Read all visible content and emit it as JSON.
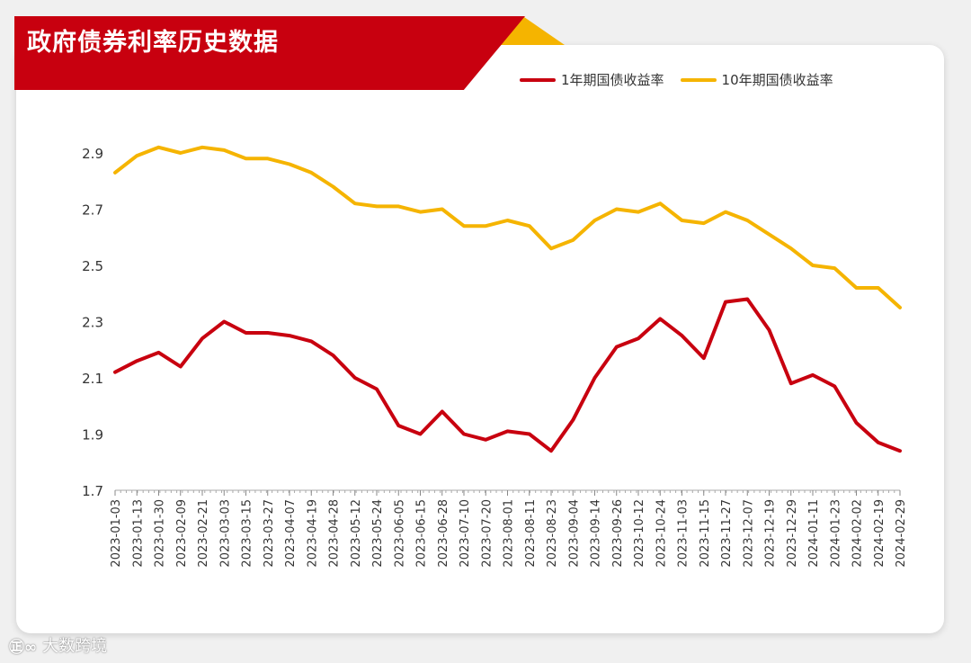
{
  "title": "政府债券利率历史数据",
  "watermark": {
    "logo": "㊣∞",
    "text": "大数跨境"
  },
  "legend": [
    {
      "name": "1年期国债收益率",
      "color": "#c8000f"
    },
    {
      "name": "10年期国债收益率",
      "color": "#f5b400"
    }
  ],
  "chart_data": {
    "type": "line",
    "ylim": [
      1.7,
      2.9
    ],
    "yticks": [
      "2.9",
      "2.7",
      "2.5",
      "2.3",
      "2.1",
      "1.9",
      "1.7"
    ],
    "x": [
      "2023-01-03",
      "2023-01-13",
      "2023-01-30",
      "2023-02-09",
      "2023-02-21",
      "2023-03-03",
      "2023-03-15",
      "2023-03-27",
      "2023-04-07",
      "2023-04-19",
      "2023-04-28",
      "2023-05-12",
      "2023-05-24",
      "2023-06-05",
      "2023-06-15",
      "2023-06-28",
      "2023-07-10",
      "2023-07-20",
      "2023-08-01",
      "2023-08-11",
      "2023-08-23",
      "2023-09-04",
      "2023-09-14",
      "2023-09-26",
      "2023-10-12",
      "2023-10-24",
      "2023-11-03",
      "2023-11-15",
      "2023-11-27",
      "2023-12-07",
      "2023-12-19",
      "2023-12-29",
      "2024-01-11",
      "2024-01-23",
      "2024-02-02",
      "2024-02-19",
      "2024-02-29"
    ],
    "series": [
      {
        "name": "1年期国债收益率",
        "color": "#c8000f",
        "values": [
          2.12,
          2.16,
          2.19,
          2.14,
          2.24,
          2.3,
          2.26,
          2.26,
          2.25,
          2.23,
          2.18,
          2.1,
          2.06,
          1.93,
          1.9,
          1.98,
          1.9,
          1.88,
          1.91,
          1.9,
          1.84,
          1.95,
          2.1,
          2.21,
          2.24,
          2.31,
          2.25,
          2.17,
          2.37,
          2.38,
          2.27,
          2.08,
          2.11,
          2.07,
          1.94,
          1.87,
          1.84
        ]
      },
      {
        "name": "10年期国债收益率",
        "color": "#f5b400",
        "values": [
          2.83,
          2.89,
          2.92,
          2.9,
          2.92,
          2.91,
          2.88,
          2.88,
          2.86,
          2.83,
          2.78,
          2.72,
          2.71,
          2.71,
          2.69,
          2.7,
          2.64,
          2.64,
          2.66,
          2.64,
          2.56,
          2.59,
          2.66,
          2.7,
          2.69,
          2.72,
          2.66,
          2.65,
          2.69,
          2.66,
          2.61,
          2.56,
          2.5,
          2.49,
          2.42,
          2.42,
          2.35
        ]
      }
    ]
  }
}
